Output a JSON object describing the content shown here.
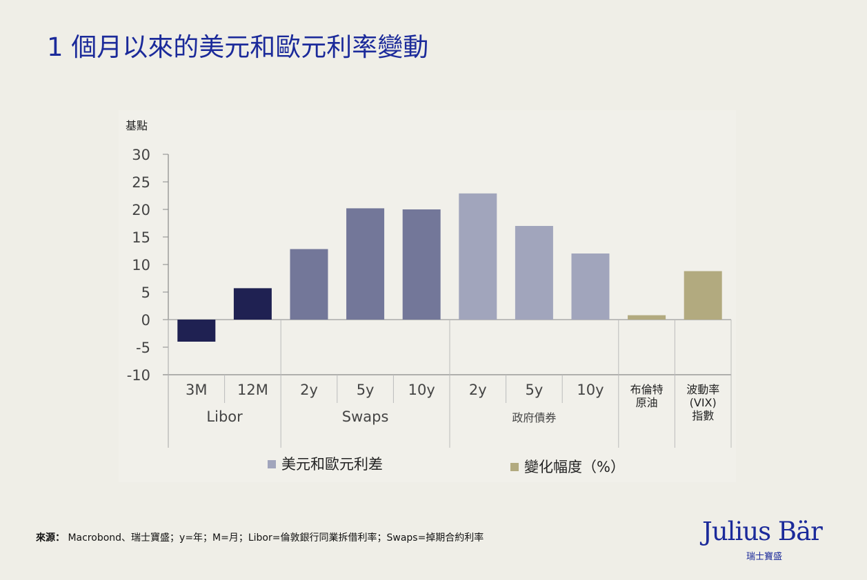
{
  "title": "1 個月以來的美元和歐元利率變動",
  "chart_data": {
    "type": "bar",
    "ylabel": "基點",
    "ylim": [
      -10,
      30
    ],
    "yticks": [
      30,
      25,
      20,
      15,
      10,
      5,
      0,
      -5,
      -10
    ],
    "categories": [
      "3M",
      "12M",
      "2y",
      "5y",
      "10y",
      "2y",
      "5y",
      "10y",
      "布倫特原油",
      "波動率(VIX)指數"
    ],
    "category_lines": [
      [
        "3M"
      ],
      [
        "12M"
      ],
      [
        "2y"
      ],
      [
        "5y"
      ],
      [
        "10y"
      ],
      [
        "2y"
      ],
      [
        "5y"
      ],
      [
        "10y"
      ],
      [
        "布倫特",
        "原油"
      ],
      [
        "波動率",
        "(VIX)",
        "指數"
      ]
    ],
    "groups": [
      {
        "label": "Libor",
        "span": 2
      },
      {
        "label": "Swaps",
        "span": 3
      },
      {
        "label": "政府債券",
        "span": 3
      },
      {
        "label": "",
        "span": 1
      },
      {
        "label": "",
        "span": 1
      }
    ],
    "values": [
      -4,
      5.7,
      12.8,
      20.2,
      20.0,
      22.9,
      17.0,
      12.0,
      0.8,
      8.8
    ],
    "bar_colors": [
      "#1f2152",
      "#1f2152",
      "#737799",
      "#737799",
      "#737799",
      "#a1a5bc",
      "#a1a5bc",
      "#a1a5bc",
      "#b2aa7f",
      "#b2aa7f"
    ],
    "legend": [
      {
        "label": "美元和歐元利差",
        "color": "#a1a5bc"
      },
      {
        "label": "變化幅度（%）",
        "color": "#b2aa7f"
      }
    ],
    "legend_position": "bottom",
    "grid": false
  },
  "footer": {
    "source_label": "來源：",
    "source_text": " Macrobond、瑞士寶盛；y=年；M=月；Libor=倫敦銀行同業拆借利率；Swaps=掉期合約利率"
  },
  "logo": {
    "name": "Julius Bär",
    "sub": "瑞士寶盛"
  }
}
